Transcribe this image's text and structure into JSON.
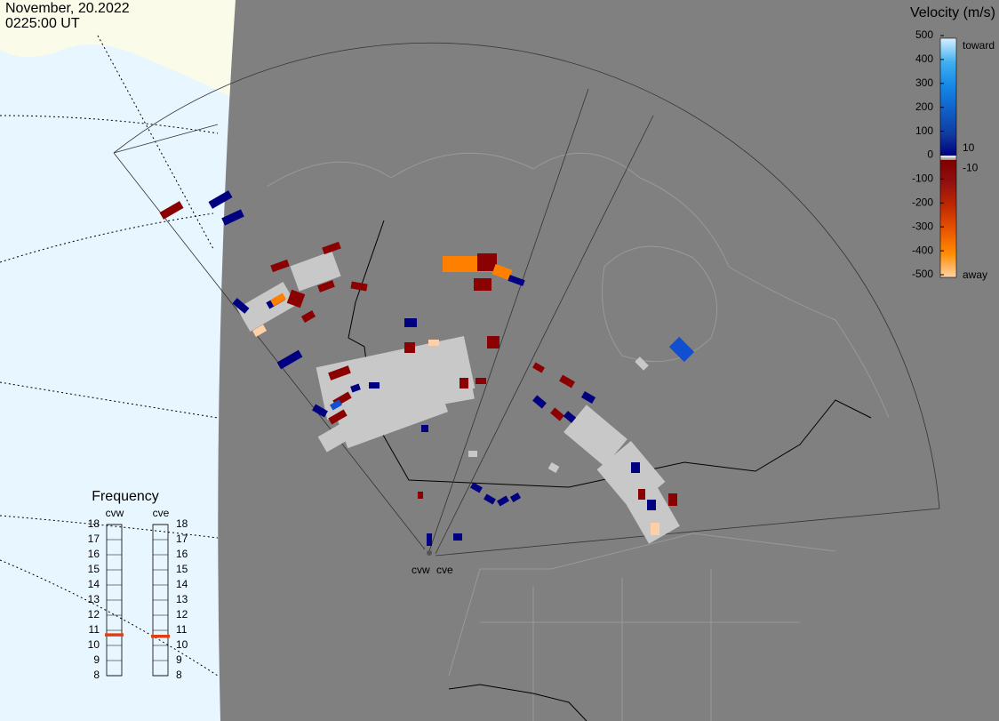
{
  "header": {
    "date": "November, 20.2022",
    "time": "0225:00 UT"
  },
  "velocity_scale": {
    "title": "Velocity (m/s)",
    "lim": [
      -500,
      500
    ],
    "ticks": [
      500,
      400,
      300,
      200,
      100,
      0,
      -100,
      -200,
      -300,
      -400,
      -500
    ],
    "inner_ticks": [
      10,
      -10
    ],
    "toward": "toward",
    "away": "away"
  },
  "frequency": {
    "title": "Frequency",
    "lim": [
      8,
      18
    ],
    "ticks": [
      18,
      17,
      16,
      15,
      14,
      13,
      12,
      11,
      10,
      9,
      8
    ],
    "radars": [
      {
        "name": "cvw",
        "value": 10.7
      },
      {
        "name": "cve",
        "value": 10.6
      }
    ]
  },
  "stations": [
    "cvw",
    "cve"
  ]
}
